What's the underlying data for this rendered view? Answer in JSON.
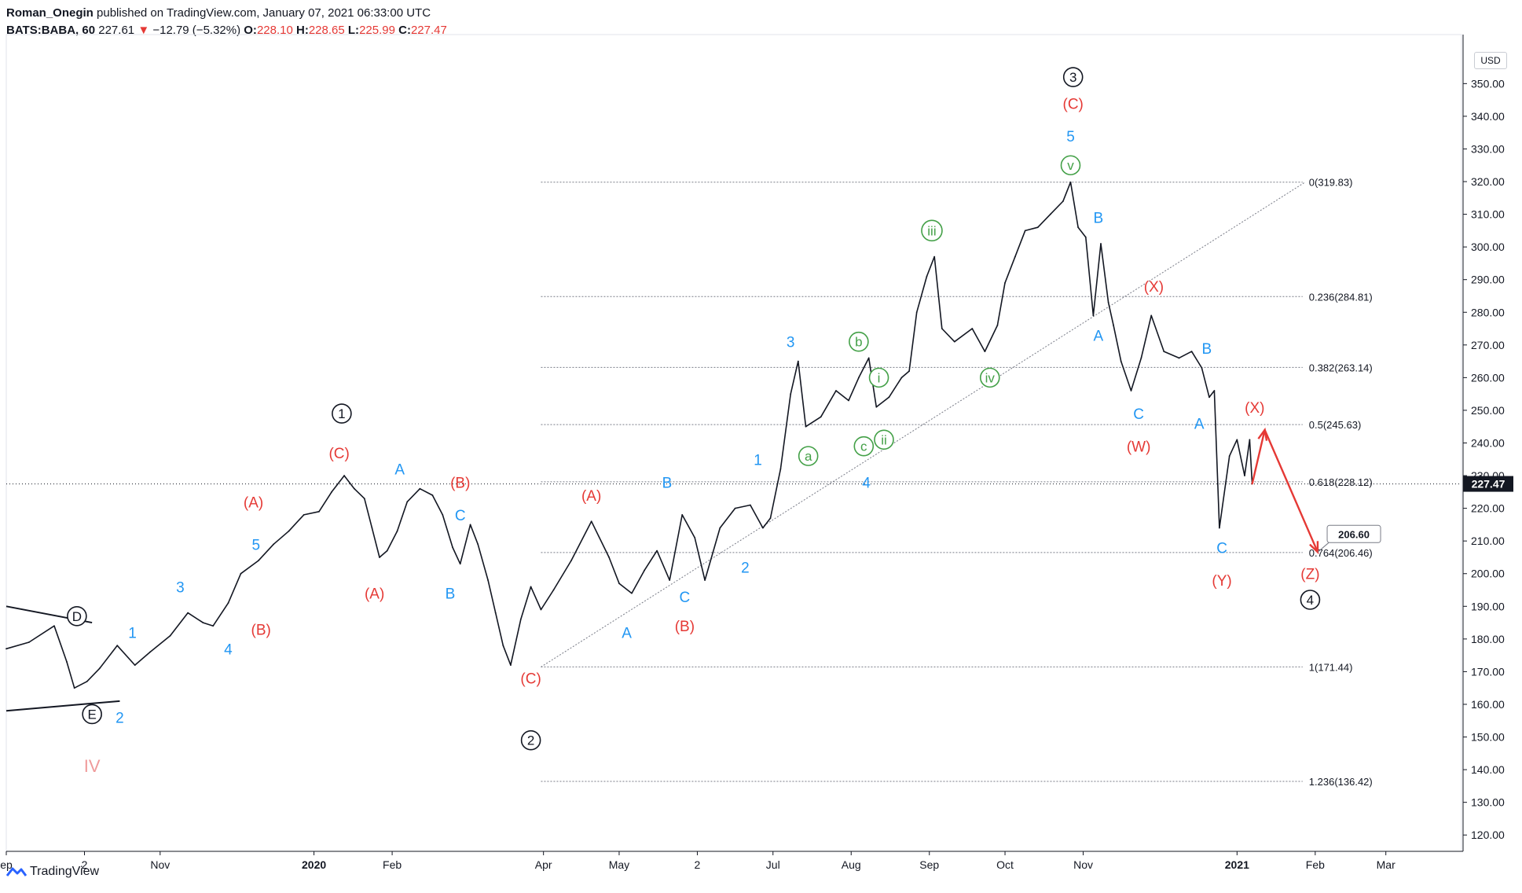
{
  "header": {
    "author": "Roman_Onegin",
    "published": "published on TradingView.com, January 07, 2021 06:33:00 UTC",
    "symbol": "BATS:BABA, 60",
    "last": "227.61",
    "arrow": "▼",
    "change": "−12.79 (−5.32%)",
    "o_label": "O:",
    "o": "228.10",
    "h_label": "H:",
    "h": "228.65",
    "l_label": "L:",
    "l": "225.99",
    "c_label": "C:",
    "c": "227.47"
  },
  "footer": {
    "brand": "TradingView",
    "logo_icon": "tradingview-logo-icon"
  },
  "currency": "USD",
  "colors": {
    "red": "#e53935",
    "blue": "#2196f3",
    "green": "#43a047",
    "pink": "#ef9a9a",
    "black": "#131722"
  },
  "chart_data": {
    "type": "line",
    "title": "",
    "ylim": [
      115,
      365
    ],
    "y_ticks": [
      120,
      130,
      140,
      150,
      160,
      170,
      180,
      190,
      200,
      210,
      220,
      230,
      240,
      250,
      260,
      270,
      280,
      290,
      300,
      310,
      320,
      330,
      340,
      350
    ],
    "y_tick_labels": [
      "120.00",
      "130.00",
      "140.00",
      "150.00",
      "160.00",
      "170.00",
      "180.00",
      "190.00",
      "200.00",
      "210.00",
      "220.00",
      "230.00",
      "240.00",
      "250.00",
      "260.00",
      "270.00",
      "280.00",
      "290.00",
      "300.00",
      "310.00",
      "320.00",
      "330.00",
      "340.00",
      "350.00"
    ],
    "x_range": [
      "2019-09-01",
      "2021-03-31"
    ],
    "x_ticks": [
      {
        "date": "2019-09-01",
        "label": "ep"
      },
      {
        "date": "2019-10-02",
        "label": "2"
      },
      {
        "date": "2019-11-01",
        "label": "Nov"
      },
      {
        "date": "2020-01-01",
        "label": "2020"
      },
      {
        "date": "2020-02-01",
        "label": "Feb"
      },
      {
        "date": "2020-04-01",
        "label": "Apr"
      },
      {
        "date": "2020-05-01",
        "label": "May"
      },
      {
        "date": "2020-06-01",
        "label": "2"
      },
      {
        "date": "2020-07-01",
        "label": "Jul"
      },
      {
        "date": "2020-08-01",
        "label": "Aug"
      },
      {
        "date": "2020-09-01",
        "label": "Sep"
      },
      {
        "date": "2020-10-01",
        "label": "Oct"
      },
      {
        "date": "2020-11-01",
        "label": "Nov"
      },
      {
        "date": "2021-01-01",
        "label": "2021"
      },
      {
        "date": "2021-02-01",
        "label": "Feb"
      },
      {
        "date": "2021-03-01",
        "label": "Mar"
      }
    ],
    "series": [
      {
        "color": "#131722",
        "points": [
          [
            "2019-09-01",
            177
          ],
          [
            "2019-09-10",
            179
          ],
          [
            "2019-09-20",
            184
          ],
          [
            "2019-09-25",
            173
          ],
          [
            "2019-09-28",
            165
          ],
          [
            "2019-10-03",
            167
          ],
          [
            "2019-10-08",
            171
          ],
          [
            "2019-10-15",
            178
          ],
          [
            "2019-10-22",
            172
          ],
          [
            "2019-10-28",
            176
          ],
          [
            "2019-11-05",
            181
          ],
          [
            "2019-11-12",
            188
          ],
          [
            "2019-11-18",
            185
          ],
          [
            "2019-11-22",
            184
          ],
          [
            "2019-11-28",
            191
          ],
          [
            "2019-12-03",
            200
          ],
          [
            "2019-12-10",
            204
          ],
          [
            "2019-12-16",
            209
          ],
          [
            "2019-12-22",
            213
          ],
          [
            "2019-12-28",
            218
          ],
          [
            "2020-01-03",
            219
          ],
          [
            "2020-01-08",
            225
          ],
          [
            "2020-01-13",
            230
          ],
          [
            "2020-01-17",
            226
          ],
          [
            "2020-01-21",
            223
          ],
          [
            "2020-01-24",
            214
          ],
          [
            "2020-01-27",
            205
          ],
          [
            "2020-01-30",
            207
          ],
          [
            "2020-02-03",
            213
          ],
          [
            "2020-02-07",
            222
          ],
          [
            "2020-02-12",
            226
          ],
          [
            "2020-02-17",
            224
          ],
          [
            "2020-02-21",
            218
          ],
          [
            "2020-02-25",
            208
          ],
          [
            "2020-02-28",
            203
          ],
          [
            "2020-03-03",
            215
          ],
          [
            "2020-03-06",
            209
          ],
          [
            "2020-03-10",
            198
          ],
          [
            "2020-03-13",
            188
          ],
          [
            "2020-03-16",
            178
          ],
          [
            "2020-03-19",
            172
          ],
          [
            "2020-03-23",
            186
          ],
          [
            "2020-03-27",
            196
          ],
          [
            "2020-03-31",
            189
          ],
          [
            "2020-04-05",
            195
          ],
          [
            "2020-04-12",
            204
          ],
          [
            "2020-04-20",
            216
          ],
          [
            "2020-04-27",
            205
          ],
          [
            "2020-05-01",
            197
          ],
          [
            "2020-05-06",
            194
          ],
          [
            "2020-05-11",
            201
          ],
          [
            "2020-05-16",
            207
          ],
          [
            "2020-05-21",
            198
          ],
          [
            "2020-05-26",
            218
          ],
          [
            "2020-05-31",
            211
          ],
          [
            "2020-06-04",
            198
          ],
          [
            "2020-06-10",
            214
          ],
          [
            "2020-06-16",
            220
          ],
          [
            "2020-06-22",
            221
          ],
          [
            "2020-06-27",
            214
          ],
          [
            "2020-06-30",
            217
          ],
          [
            "2020-07-04",
            232
          ],
          [
            "2020-07-08",
            255
          ],
          [
            "2020-07-11",
            265
          ],
          [
            "2020-07-14",
            245
          ],
          [
            "2020-07-20",
            248
          ],
          [
            "2020-07-26",
            256
          ],
          [
            "2020-07-31",
            253
          ],
          [
            "2020-08-04",
            260
          ],
          [
            "2020-08-08",
            266
          ],
          [
            "2020-08-11",
            251
          ],
          [
            "2020-08-16",
            254
          ],
          [
            "2020-08-21",
            260
          ],
          [
            "2020-08-24",
            262
          ],
          [
            "2020-08-27",
            280
          ],
          [
            "2020-08-31",
            291
          ],
          [
            "2020-09-03",
            297
          ],
          [
            "2020-09-06",
            275
          ],
          [
            "2020-09-11",
            271
          ],
          [
            "2020-09-18",
            275
          ],
          [
            "2020-09-23",
            268
          ],
          [
            "2020-09-28",
            276
          ],
          [
            "2020-10-01",
            289
          ],
          [
            "2020-10-05",
            297
          ],
          [
            "2020-10-09",
            305
          ],
          [
            "2020-10-14",
            306
          ],
          [
            "2020-10-19",
            310
          ],
          [
            "2020-10-24",
            314
          ],
          [
            "2020-10-27",
            319.83
          ],
          [
            "2020-10-30",
            306
          ],
          [
            "2020-11-02",
            303
          ],
          [
            "2020-11-05",
            279
          ],
          [
            "2020-11-08",
            301
          ],
          [
            "2020-11-11",
            283
          ],
          [
            "2020-11-13",
            276
          ],
          [
            "2020-11-16",
            265
          ],
          [
            "2020-11-20",
            256
          ],
          [
            "2020-11-24",
            266
          ],
          [
            "2020-11-28",
            279
          ],
          [
            "2020-12-03",
            268
          ],
          [
            "2020-12-09",
            266
          ],
          [
            "2020-12-14",
            268
          ],
          [
            "2020-12-18",
            263
          ],
          [
            "2020-12-21",
            254
          ],
          [
            "2020-12-23",
            256
          ],
          [
            "2020-12-25",
            214
          ],
          [
            "2020-12-29",
            236
          ],
          [
            "2021-01-01",
            241
          ],
          [
            "2021-01-04",
            230
          ],
          [
            "2021-01-06",
            241
          ],
          [
            "2021-01-07",
            227.47
          ]
        ]
      },
      {
        "color": "#e53935",
        "points": [
          [
            "2021-01-07",
            227.47
          ],
          [
            "2021-01-12",
            244
          ],
          [
            "2021-02-02",
            206.6
          ]
        ]
      }
    ],
    "fib_levels": [
      {
        "ratio": "0",
        "price": 319.83,
        "label": "0(319.83)"
      },
      {
        "ratio": "0.236",
        "price": 284.81,
        "label": "0.236(284.81)"
      },
      {
        "ratio": "0.382",
        "price": 263.14,
        "label": "0.382(263.14)"
      },
      {
        "ratio": "0.5",
        "price": 245.63,
        "label": "0.5(245.63)"
      },
      {
        "ratio": "0.618",
        "price": 228.12,
        "label": "0.618(228.12)"
      },
      {
        "ratio": "0.764",
        "price": 206.46,
        "label": "0.764(206.46)"
      },
      {
        "ratio": "1",
        "price": 171.44,
        "label": "1(171.44)"
      },
      {
        "ratio": "1.236",
        "price": 136.42,
        "label": "1.236(136.42)"
      }
    ],
    "fib_start": "2020-03-31",
    "fib_end": "2021-01-27",
    "trendline": [
      [
        "2020-03-31",
        171.44
      ],
      [
        "2021-01-28",
        319.83
      ]
    ],
    "triangle_lines": [
      [
        [
          "2019-09-01",
          190
        ],
        [
          "2019-10-05",
          185
        ]
      ],
      [
        [
          "2019-09-01",
          158
        ],
        [
          "2019-10-16",
          161
        ]
      ]
    ],
    "last_price_label": "227.47",
    "last_price": 227.47,
    "target_label": "206.60",
    "target_price": 206.6,
    "wave_labels": [
      {
        "text": "D",
        "date": "2019-09-29",
        "price": 187,
        "color": "#131722",
        "circle": true
      },
      {
        "text": "E",
        "date": "2019-10-05",
        "price": 157,
        "color": "#131722",
        "circle": true
      },
      {
        "text": "IV",
        "date": "2019-10-05",
        "price": 141,
        "color": "#ef9a9a",
        "circle": false
      },
      {
        "text": "1",
        "date": "2019-10-21",
        "price": 182,
        "color": "#2196f3",
        "circle": false
      },
      {
        "text": "2",
        "date": "2019-10-16",
        "price": 156,
        "color": "#2196f3",
        "circle": false
      },
      {
        "text": "3",
        "date": "2019-11-09",
        "price": 196,
        "color": "#2196f3",
        "circle": false
      },
      {
        "text": "4",
        "date": "2019-11-28",
        "price": 177,
        "color": "#2196f3",
        "circle": false
      },
      {
        "text": "5",
        "date": "2019-12-09",
        "price": 209,
        "color": "#2196f3",
        "circle": false
      },
      {
        "text": "(A)",
        "date": "2019-12-08",
        "price": 222,
        "color": "#e53935",
        "circle": false
      },
      {
        "text": "(B)",
        "date": "2019-12-11",
        "price": 183,
        "color": "#e53935",
        "circle": false
      },
      {
        "text": "(C)",
        "date": "2020-01-11",
        "price": 237,
        "color": "#e53935",
        "circle": false
      },
      {
        "text": "1",
        "date": "2020-01-12",
        "price": 249,
        "color": "#131722",
        "circle": true
      },
      {
        "text": "(A)",
        "date": "2020-01-25",
        "price": 194,
        "color": "#e53935",
        "circle": false
      },
      {
        "text": "A",
        "date": "2020-02-04",
        "price": 232,
        "color": "#2196f3",
        "circle": false
      },
      {
        "text": "(B)",
        "date": "2020-02-28",
        "price": 228,
        "color": "#e53935",
        "circle": false
      },
      {
        "text": "C",
        "date": "2020-02-28",
        "price": 218,
        "color": "#2196f3",
        "circle": false
      },
      {
        "text": "B",
        "date": "2020-02-24",
        "price": 194,
        "color": "#2196f3",
        "circle": false
      },
      {
        "text": "(C)",
        "date": "2020-03-27",
        "price": 168,
        "color": "#e53935",
        "circle": false
      },
      {
        "text": "2",
        "date": "2020-03-27",
        "price": 149,
        "color": "#131722",
        "circle": true
      },
      {
        "text": "(A)",
        "date": "2020-04-20",
        "price": 224,
        "color": "#e53935",
        "circle": false
      },
      {
        "text": "A",
        "date": "2020-05-04",
        "price": 182,
        "color": "#2196f3",
        "circle": false
      },
      {
        "text": "B",
        "date": "2020-05-20",
        "price": 228,
        "color": "#2196f3",
        "circle": false
      },
      {
        "text": "C",
        "date": "2020-05-27",
        "price": 193,
        "color": "#2196f3",
        "circle": false
      },
      {
        "text": "(B)",
        "date": "2020-05-27",
        "price": 184,
        "color": "#e53935",
        "circle": false
      },
      {
        "text": "1",
        "date": "2020-06-25",
        "price": 235,
        "color": "#2196f3",
        "circle": false
      },
      {
        "text": "2",
        "date": "2020-06-20",
        "price": 202,
        "color": "#2196f3",
        "circle": false
      },
      {
        "text": "3",
        "date": "2020-07-08",
        "price": 271,
        "color": "#2196f3",
        "circle": false
      },
      {
        "text": "a",
        "date": "2020-07-15",
        "price": 236,
        "color": "#43a047",
        "circle": true
      },
      {
        "text": "b",
        "date": "2020-08-04",
        "price": 271,
        "color": "#43a047",
        "circle": true
      },
      {
        "text": "c",
        "date": "2020-08-06",
        "price": 239,
        "color": "#43a047",
        "circle": true
      },
      {
        "text": "i",
        "date": "2020-08-12",
        "price": 260,
        "color": "#43a047",
        "circle": true
      },
      {
        "text": "ii",
        "date": "2020-08-14",
        "price": 241,
        "color": "#43a047",
        "circle": true
      },
      {
        "text": "4",
        "date": "2020-08-07",
        "price": 228,
        "color": "#2196f3",
        "circle": false
      },
      {
        "text": "iii",
        "date": "2020-09-02",
        "price": 305,
        "color": "#43a047",
        "circle": true
      },
      {
        "text": "iv",
        "date": "2020-09-25",
        "price": 260,
        "color": "#43a047",
        "circle": true
      },
      {
        "text": "v",
        "date": "2020-10-27",
        "price": 325,
        "color": "#43a047",
        "circle": true
      },
      {
        "text": "5",
        "date": "2020-10-27",
        "price": 334,
        "color": "#2196f3",
        "circle": false
      },
      {
        "text": "(C)",
        "date": "2020-10-28",
        "price": 344,
        "color": "#e53935",
        "circle": false
      },
      {
        "text": "3",
        "date": "2020-10-28",
        "price": 352,
        "color": "#131722",
        "circle": true
      },
      {
        "text": "B",
        "date": "2020-11-07",
        "price": 309,
        "color": "#2196f3",
        "circle": false
      },
      {
        "text": "A",
        "date": "2020-11-07",
        "price": 273,
        "color": "#2196f3",
        "circle": false
      },
      {
        "text": "(X)",
        "date": "2020-11-29",
        "price": 288,
        "color": "#e53935",
        "circle": false
      },
      {
        "text": "C",
        "date": "2020-11-23",
        "price": 249,
        "color": "#2196f3",
        "circle": false
      },
      {
        "text": "(W)",
        "date": "2020-11-23",
        "price": 239,
        "color": "#e53935",
        "circle": false
      },
      {
        "text": "B",
        "date": "2020-12-20",
        "price": 269,
        "color": "#2196f3",
        "circle": false
      },
      {
        "text": "A",
        "date": "2020-12-17",
        "price": 246,
        "color": "#2196f3",
        "circle": false
      },
      {
        "text": "C",
        "date": "2020-12-26",
        "price": 208,
        "color": "#2196f3",
        "circle": false
      },
      {
        "text": "(Y)",
        "date": "2020-12-26",
        "price": 198,
        "color": "#e53935",
        "circle": false
      },
      {
        "text": "(X)",
        "date": "2021-01-08",
        "price": 251,
        "color": "#e53935",
        "circle": false
      },
      {
        "text": "(Z)",
        "date": "2021-01-30",
        "price": 200,
        "color": "#e53935",
        "circle": false
      },
      {
        "text": "4",
        "date": "2021-01-30",
        "price": 192,
        "color": "#131722",
        "circle": true
      }
    ]
  }
}
